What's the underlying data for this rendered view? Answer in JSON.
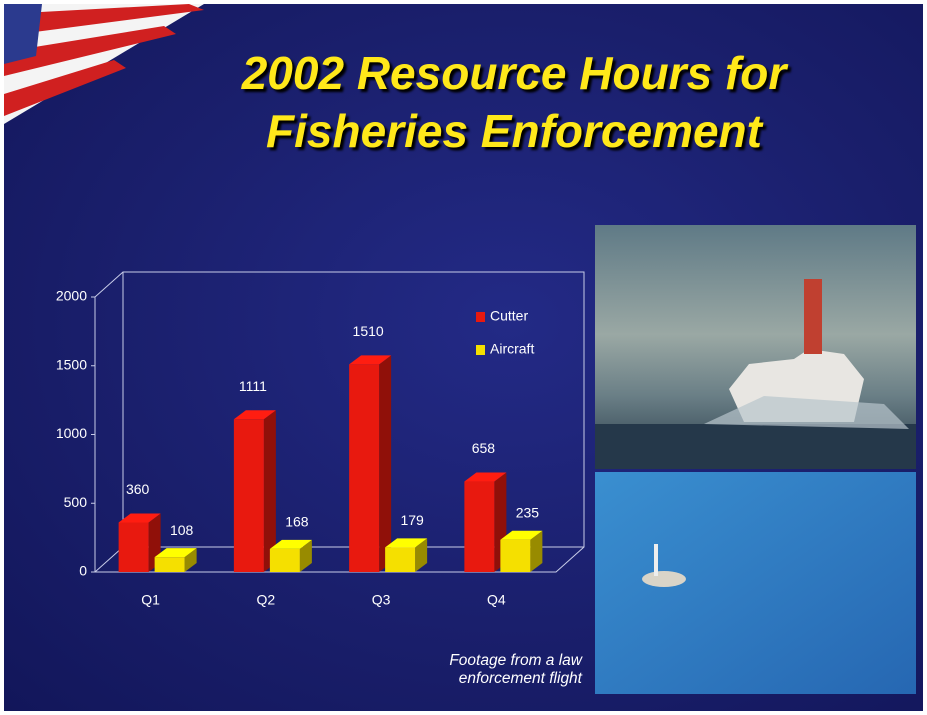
{
  "chart_data": {
    "type": "bar3d",
    "title": "2002 Resource Hours for Fisheries Enforcement",
    "categories": [
      "Q1",
      "Q2",
      "Q3",
      "Q4"
    ],
    "series": [
      {
        "name": "Cutter",
        "color": "#e8190f",
        "values": [
          360,
          1111,
          1510,
          658
        ]
      },
      {
        "name": "Aircraft",
        "color": "#f5e000",
        "values": [
          108,
          168,
          179,
          235
        ]
      }
    ],
    "ylim": [
      0,
      2000
    ],
    "yticks": [
      0,
      500,
      1000,
      1500,
      2000
    ],
    "grid": false,
    "legend": "upper right",
    "caption": "Footage from a law enforcement flight"
  }
}
